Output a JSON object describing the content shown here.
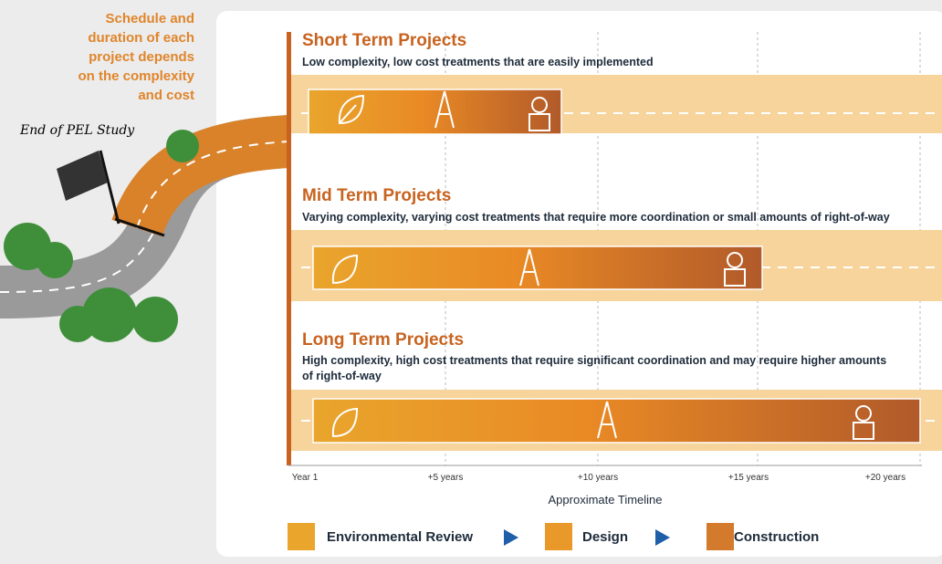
{
  "left_note": [
    "Schedule and",
    "duration of each",
    "project depends",
    "on the complexity",
    "and cost"
  ],
  "flag_label": "End of PEL Study",
  "sections": [
    {
      "title": "Short Term Projects",
      "description": [
        "Low complexity, low cost treatments that are easily implemented"
      ]
    },
    {
      "title": "Mid Term Projects",
      "description": [
        "Varying complexity, varying cost treatments that require more coordination or small amounts of right-of-way"
      ]
    },
    {
      "title": "Long Term Projects",
      "description": [
        "High complexity, high cost treatments that require significant coordination and may require higher amounts",
        "of right-of-way"
      ]
    }
  ],
  "timeline": {
    "ticks": [
      "Year 1",
      "+5 years",
      "+10 years",
      "+15 years",
      "+20 years"
    ],
    "title": "Approximate Timeline"
  },
  "legend": [
    "Environmental Review",
    "Design",
    "Construction"
  ]
}
